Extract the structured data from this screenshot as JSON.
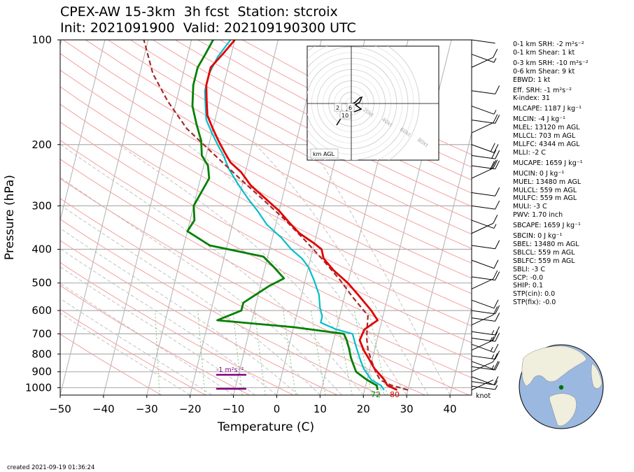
{
  "header": {
    "line1": "CPEX-AW 15-3km  3h fcst  Station: stcroix",
    "line2": "Init: 2021091900  Valid: 202109190300 UTC"
  },
  "footer": {
    "created": "created 2021-09-19 01:36:24"
  },
  "parameters": [
    "0-1 km SRH: -2 m²s⁻²",
    "0-1 km Shear: 1 kt",
    "0-3 km SRH: -10 m²s⁻²",
    "0-6 km Shear: 9 kt",
    "EBWD: 1 kt",
    "Eff. SRH: -1 m²s⁻²",
    "K-index: 31",
    "MLCAPE: 1187 J kg⁻¹",
    "MLCIN: -4 J kg⁻¹",
    "MLEL: 13120 m AGL",
    "MLLCL: 703 m AGL",
    "MLLFC: 4344 m AGL",
    "MLLI: -2 C",
    "MUCAPE: 1659 J kg⁻¹",
    "MUCIN: 0 J kg⁻¹",
    "MUEL: 13480 m AGL",
    "MULCL: 559 m AGL",
    "MULFC: 559 m AGL",
    "MULI: -3 C",
    "PWV: 1.70 inch",
    "SBCAPE: 1659 J kg⁻¹",
    "SBCIN: 0 J kg⁻¹",
    "SBEL: 13480 m AGL",
    "SBLCL: 559 m AGL",
    "SBLFC: 559 m AGL",
    "SBLI: -3 C",
    "SCP: -0.0",
    "SHIP: 0.1",
    "STP(cin): 0.0",
    "STP(fix): -0.0"
  ],
  "colors": {
    "temperature": "#e00000",
    "dewpoint": "#008000",
    "wetbulb": "#00bfc8",
    "parcel": "#a52a2a",
    "dry_adiabat": "#f4a0a0",
    "moist_adiabat": "#bbbbbb",
    "mixing_ratio": "#88c888",
    "srh_bar": "#800080",
    "globe_ocean": "#9ab8e0",
    "globe_land": "#f0eedc"
  },
  "chart_data": {
    "type": "line",
    "title": "CPEX-AW 15-3km  3h fcst  Station: stcroix",
    "xlabel": "Temperature (C)",
    "ylabel": "Pressure (hPa)",
    "xlim": [
      -50,
      45
    ],
    "ylim": [
      1050,
      100
    ],
    "y_scale": "log",
    "x_ticks": [
      "−50",
      "−40",
      "−30",
      "−20",
      "−10",
      "0",
      "10",
      "20",
      "30",
      "40"
    ],
    "y_ticks": [
      "100",
      "200",
      "300",
      "400",
      "500",
      "600",
      "700",
      "800",
      "900",
      "1000"
    ],
    "surface_labels": {
      "dewpoint": "72",
      "temperature": "80",
      "wind_unit": "knot"
    },
    "srh_label": "-1 m²s⁻²",
    "series": [
      {
        "name": "temperature",
        "points": [
          [
            27.5,
            1015
          ],
          [
            25,
            985
          ],
          [
            24,
            950
          ],
          [
            21,
            880
          ],
          [
            19,
            820
          ],
          [
            17.5,
            780
          ],
          [
            16,
            730
          ],
          [
            16.5,
            680
          ],
          [
            19,
            640
          ],
          [
            17,
            600
          ],
          [
            13,
            540
          ],
          [
            10,
            500
          ],
          [
            6,
            460
          ],
          [
            3,
            425
          ],
          [
            2,
            400
          ],
          [
            0,
            385
          ],
          [
            -4,
            360
          ],
          [
            -7,
            335
          ],
          [
            -10,
            310
          ],
          [
            -14,
            285
          ],
          [
            -18,
            262
          ],
          [
            -21,
            240
          ],
          [
            -24,
            225
          ],
          [
            -26,
            210
          ],
          [
            -28,
            195
          ],
          [
            -30,
            180
          ],
          [
            -32,
            165
          ],
          [
            -33,
            150
          ],
          [
            -34,
            135
          ],
          [
            -34,
            120
          ],
          [
            -32,
            110
          ],
          [
            -30,
            100
          ]
        ]
      },
      {
        "name": "dewpoint",
        "points": [
          [
            23,
            1015
          ],
          [
            22.5,
            985
          ],
          [
            20,
            950
          ],
          [
            17,
            900
          ],
          [
            16,
            860
          ],
          [
            15,
            820
          ],
          [
            14,
            770
          ],
          [
            13,
            730
          ],
          [
            12,
            700
          ],
          [
            0,
            670
          ],
          [
            -18,
            640
          ],
          [
            -13,
            600
          ],
          [
            -13,
            570
          ],
          [
            -11,
            545
          ],
          [
            -8,
            510
          ],
          [
            -5,
            485
          ],
          [
            -8,
            450
          ],
          [
            -11,
            420
          ],
          [
            -24,
            390
          ],
          [
            -30,
            355
          ],
          [
            -29,
            330
          ],
          [
            -30,
            300
          ],
          [
            -28,
            250
          ],
          [
            -29,
            230
          ],
          [
            -31,
            215
          ],
          [
            -32,
            195
          ],
          [
            -34,
            175
          ],
          [
            -36,
            155
          ],
          [
            -37,
            135
          ],
          [
            -37,
            120
          ],
          [
            -36,
            110
          ],
          [
            -35,
            100
          ]
        ]
      },
      {
        "name": "wetbulb",
        "points": [
          [
            24.5,
            1015
          ],
          [
            23.5,
            985
          ],
          [
            21,
            950
          ],
          [
            18.5,
            880
          ],
          [
            17,
            820
          ],
          [
            15.5,
            760
          ],
          [
            14,
            700
          ],
          [
            10,
            680
          ],
          [
            6,
            650
          ],
          [
            6,
            625
          ],
          [
            5,
            590
          ],
          [
            4,
            540
          ],
          [
            2,
            490
          ],
          [
            0,
            450
          ],
          [
            -2,
            425
          ],
          [
            -5,
            400
          ],
          [
            -8,
            370
          ],
          [
            -12,
            340
          ],
          [
            -15,
            310
          ],
          [
            -18,
            285
          ],
          [
            -21,
            260
          ],
          [
            -24,
            235
          ],
          [
            -26,
            215
          ],
          [
            -28,
            200
          ],
          [
            -30,
            185
          ],
          [
            -32,
            170
          ],
          [
            -33,
            155
          ],
          [
            -34,
            140
          ],
          [
            -34,
            125
          ],
          [
            -33,
            112
          ],
          [
            -31,
            100
          ]
        ]
      },
      {
        "name": "parcel",
        "points": [
          [
            30,
            1015
          ],
          [
            26,
            985
          ],
          [
            23,
            950
          ],
          [
            21.5,
            900
          ],
          [
            20,
            840
          ],
          [
            18.5,
            780
          ],
          [
            17.5,
            720
          ],
          [
            17,
            670
          ],
          [
            16.5,
            620
          ],
          [
            12,
            550
          ],
          [
            8,
            490
          ],
          [
            3,
            430
          ],
          [
            -2,
            380
          ],
          [
            -8,
            330
          ],
          [
            -14,
            290
          ],
          [
            -21,
            250
          ],
          [
            -29,
            210
          ],
          [
            -36,
            180
          ],
          [
            -42,
            150
          ],
          [
            -47,
            125
          ],
          [
            -51,
            100
          ]
        ]
      }
    ],
    "wind_barbs_kt": [
      [
        1015,
        2
      ],
      [
        990,
        5
      ],
      [
        960,
        8
      ],
      [
        930,
        10
      ],
      [
        900,
        12
      ],
      [
        870,
        15
      ],
      [
        840,
        12
      ],
      [
        810,
        15
      ],
      [
        780,
        15
      ],
      [
        750,
        15
      ],
      [
        720,
        15
      ],
      [
        690,
        15
      ],
      [
        660,
        12
      ],
      [
        630,
        10
      ],
      [
        600,
        12
      ],
      [
        560,
        12
      ],
      [
        520,
        12
      ],
      [
        480,
        12
      ],
      [
        430,
        10
      ],
      [
        390,
        10
      ],
      [
        360,
        10
      ],
      [
        330,
        5
      ],
      [
        300,
        10
      ],
      [
        275,
        10
      ],
      [
        250,
        20
      ],
      [
        230,
        20
      ],
      [
        215,
        20
      ],
      [
        200,
        20
      ],
      [
        185,
        10
      ],
      [
        170,
        10
      ],
      [
        155,
        5
      ],
      [
        140,
        10
      ],
      [
        120,
        10
      ],
      [
        110,
        5
      ],
      [
        100,
        2
      ]
    ],
    "hodograph": {
      "ring_labels": [
        "20kt",
        "40kt",
        "60kt",
        "80kt"
      ],
      "km_labels": [
        "2",
        "6",
        "10"
      ],
      "legend": "km AGL"
    },
    "globe": {
      "station": "stcroix"
    }
  }
}
